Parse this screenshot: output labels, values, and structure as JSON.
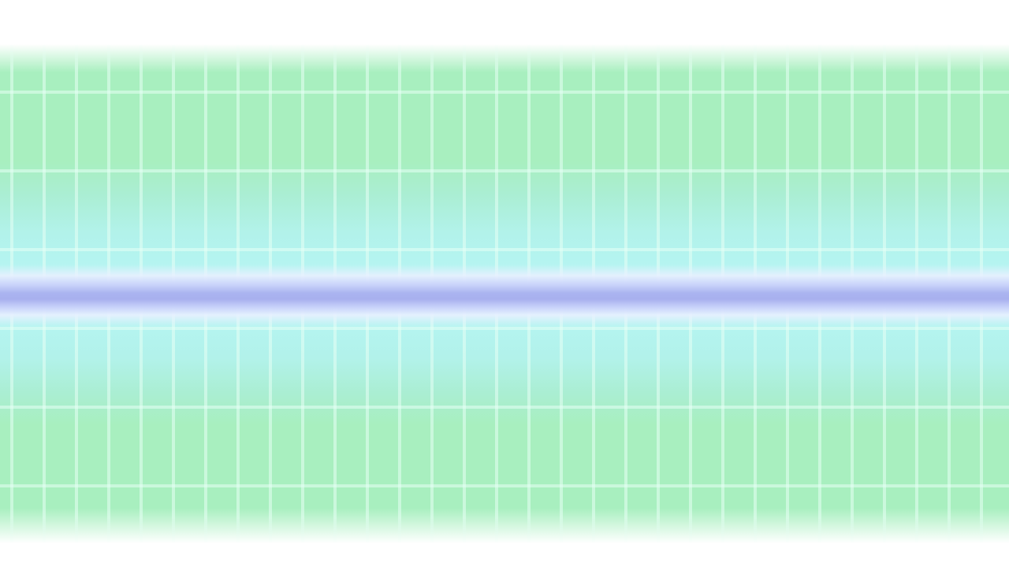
{
  "scene": {
    "background_color": "#ffffff",
    "band_color": "#a8efbf",
    "center_color": "#b4f4f0",
    "glow_line_color": "#a8b0ee",
    "grid_line_color": "#e6fff5"
  }
}
